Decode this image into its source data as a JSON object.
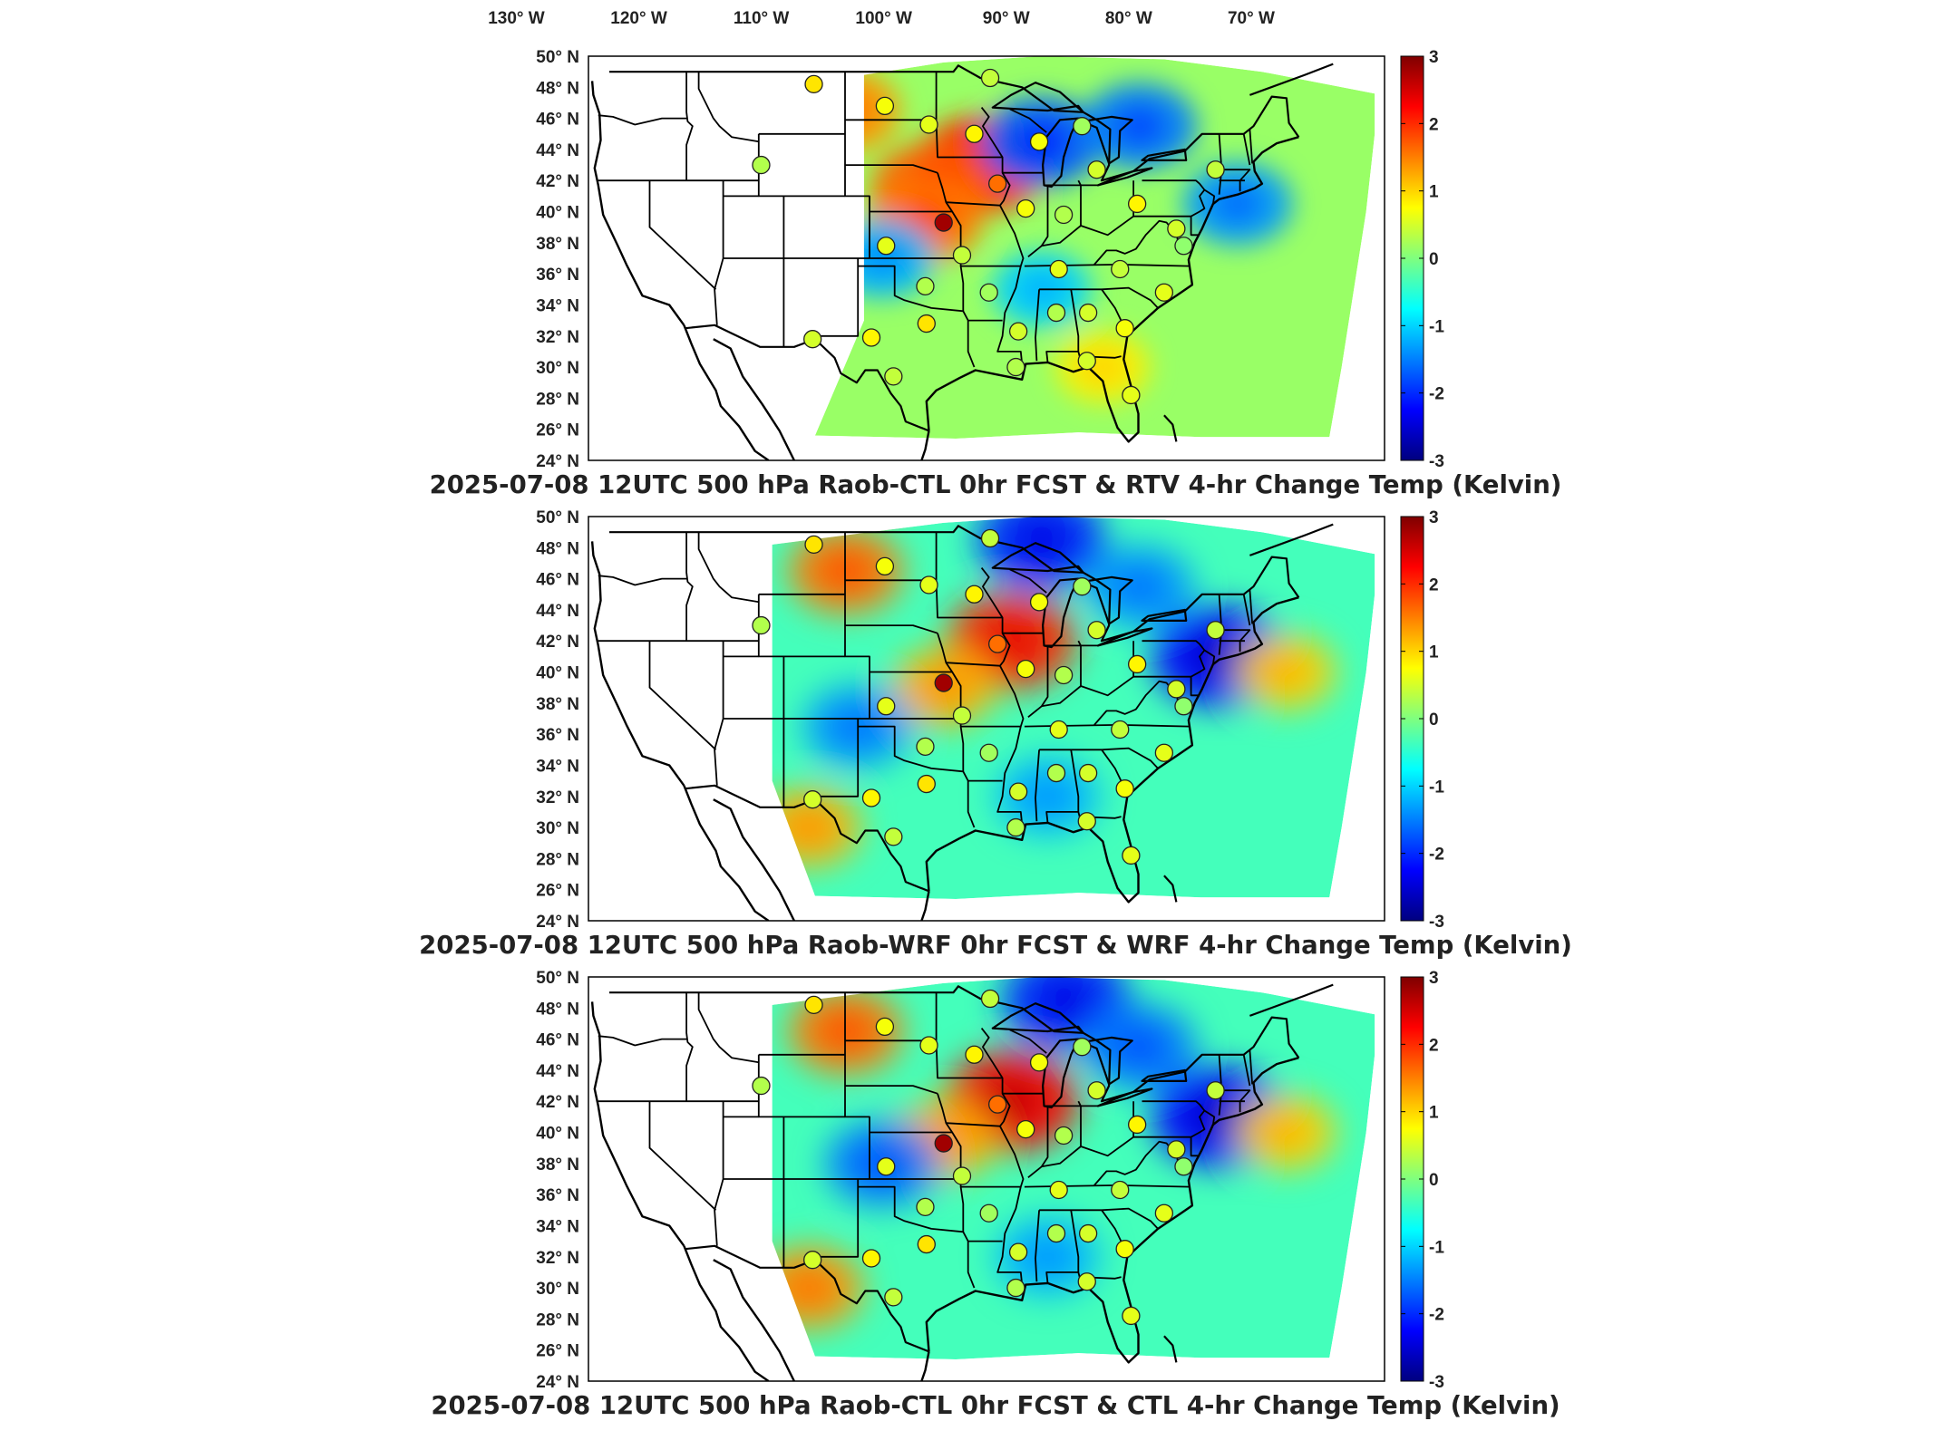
{
  "top_lon_labels": [
    "130° W",
    "120° W",
    "110° W",
    "100° W",
    "90° W",
    "80° W",
    "70° W"
  ],
  "lat_labels": [
    "50° N",
    "48° N",
    "46° N",
    "44° N",
    "42° N",
    "40° N",
    "38° N",
    "36° N",
    "34° N",
    "32° N",
    "30° N",
    "28° N",
    "26° N",
    "24° N"
  ],
  "colorbar": {
    "ticks": [
      "3",
      "2",
      "1",
      "0",
      "-1",
      "-2",
      "-3"
    ],
    "range": [
      -3,
      3
    ],
    "colormap": [
      "#00007f",
      "#0000ff",
      "#007fff",
      "#00ffff",
      "#7fff7f",
      "#ffff00",
      "#ff7f00",
      "#ff0000",
      "#7f0000"
    ]
  },
  "map_extent": {
    "lon": [
      -125,
      -60
    ],
    "lat": [
      24,
      50
    ]
  },
  "panels": [
    {
      "title": "2025-07-08 12UTC 500 hPa Raob-CTL 0hr FCST & RTV 4-hr Change Temp (Kelvin)",
      "field_type": "rtv",
      "field_left_lon": -102.5,
      "hotspots": [
        {
          "lon": -93,
          "lat": 43,
          "value": 2.4
        },
        {
          "lon": -97,
          "lat": 41.5,
          "value": 2.0
        },
        {
          "lon": -97.5,
          "lat": 39.5,
          "value": 1.8
        },
        {
          "lon": -104,
          "lat": 46.5,
          "value": 1.6
        },
        {
          "lon": -88,
          "lat": 44.5,
          "value": -2.0
        },
        {
          "lon": -80,
          "lat": 45.5,
          "value": -1.8
        },
        {
          "lon": -72,
          "lat": 40.5,
          "value": -1.6
        },
        {
          "lon": -101,
          "lat": 37,
          "value": -1.4
        },
        {
          "lon": -88,
          "lat": 35,
          "value": -1.2
        },
        {
          "lon": -83,
          "lat": 30,
          "value": 1.0
        }
      ]
    },
    {
      "title": "2025-07-08 12UTC 500 hPa Raob-WRF 0hr FCST & WRF 4-hr Change Temp (Kelvin)",
      "field_type": "wrf",
      "field_left_lon": -110,
      "hotspots": [
        {
          "lon": -90.5,
          "lat": 42,
          "value": 2.4
        },
        {
          "lon": -104,
          "lat": 46.5,
          "value": 1.8
        },
        {
          "lon": -96,
          "lat": 39,
          "value": 1.4
        },
        {
          "lon": -88,
          "lat": 48.5,
          "value": -2.4
        },
        {
          "lon": -80,
          "lat": 45.5,
          "value": -1.6
        },
        {
          "lon": -73.5,
          "lat": 41,
          "value": -2.6
        },
        {
          "lon": -103,
          "lat": 36.5,
          "value": -1.6
        },
        {
          "lon": -87.5,
          "lat": 32,
          "value": -1.4
        },
        {
          "lon": -68,
          "lat": 40,
          "value": 1.2
        },
        {
          "lon": -107,
          "lat": 30,
          "value": 1.4
        }
      ]
    },
    {
      "title": "2025-07-08 12UTC 500 hPa Raob-CTL 0hr FCST & CTL 4-hr Change Temp (Kelvin)",
      "field_type": "ctl",
      "field_left_lon": -110,
      "hotspots": [
        {
          "lon": -90.5,
          "lat": 42,
          "value": 2.6
        },
        {
          "lon": -104,
          "lat": 46.5,
          "value": 1.8
        },
        {
          "lon": -96,
          "lat": 39.5,
          "value": 1.4
        },
        {
          "lon": -86,
          "lat": 48.5,
          "value": -2.4
        },
        {
          "lon": -80,
          "lat": 45.5,
          "value": -1.8
        },
        {
          "lon": -73.5,
          "lat": 41,
          "value": -2.6
        },
        {
          "lon": -101,
          "lat": 38,
          "value": -1.8
        },
        {
          "lon": -87.5,
          "lat": 32,
          "value": -1.4
        },
        {
          "lon": -68,
          "lat": 40,
          "value": 1.2
        },
        {
          "lon": -107,
          "lat": 30,
          "value": 1.6
        }
      ]
    }
  ],
  "raob_stations": [
    {
      "lon": -106.6,
      "lat": 48.2,
      "value": 0.9
    },
    {
      "lon": -100.8,
      "lat": 46.8,
      "value": 0.7
    },
    {
      "lon": -97.2,
      "lat": 45.6,
      "value": 0.6
    },
    {
      "lon": -92.2,
      "lat": 48.6,
      "value": 0.4
    },
    {
      "lon": -93.5,
      "lat": 45.0,
      "value": 0.8
    },
    {
      "lon": -88.2,
      "lat": 44.5,
      "value": 0.7
    },
    {
      "lon": -84.7,
      "lat": 45.5,
      "value": 0.2
    },
    {
      "lon": -83.5,
      "lat": 42.7,
      "value": 0.5
    },
    {
      "lon": -91.6,
      "lat": 41.8,
      "value": 1.6
    },
    {
      "lon": -89.3,
      "lat": 40.2,
      "value": 0.7
    },
    {
      "lon": -96.0,
      "lat": 39.3,
      "value": 2.8
    },
    {
      "lon": -100.7,
      "lat": 37.8,
      "value": 0.6
    },
    {
      "lon": -94.5,
      "lat": 37.2,
      "value": 0.4
    },
    {
      "lon": -86.2,
      "lat": 39.8,
      "value": 0.3
    },
    {
      "lon": -80.2,
      "lat": 40.5,
      "value": 0.8
    },
    {
      "lon": -77.0,
      "lat": 38.9,
      "value": 0.5
    },
    {
      "lon": -76.4,
      "lat": 37.8,
      "value": 0.1
    },
    {
      "lon": -81.6,
      "lat": 36.3,
      "value": 0.4
    },
    {
      "lon": -86.6,
      "lat": 36.3,
      "value": 0.6
    },
    {
      "lon": -97.5,
      "lat": 35.2,
      "value": 0.3
    },
    {
      "lon": -92.3,
      "lat": 34.8,
      "value": 0.2
    },
    {
      "lon": -86.8,
      "lat": 33.5,
      "value": 0.3
    },
    {
      "lon": -84.2,
      "lat": 33.5,
      "value": 0.5
    },
    {
      "lon": -78.0,
      "lat": 34.8,
      "value": 0.6
    },
    {
      "lon": -81.2,
      "lat": 32.5,
      "value": 0.7
    },
    {
      "lon": -89.9,
      "lat": 32.3,
      "value": 0.5
    },
    {
      "lon": -97.4,
      "lat": 32.8,
      "value": 0.9
    },
    {
      "lon": -101.9,
      "lat": 31.9,
      "value": 0.8
    },
    {
      "lon": -106.7,
      "lat": 31.8,
      "value": 0.5
    },
    {
      "lon": -100.1,
      "lat": 29.4,
      "value": 0.4
    },
    {
      "lon": -90.1,
      "lat": 30.0,
      "value": 0.3
    },
    {
      "lon": -84.3,
      "lat": 30.4,
      "value": 0.5
    },
    {
      "lon": -80.7,
      "lat": 28.2,
      "value": 0.6
    },
    {
      "lon": -73.8,
      "lat": 42.7,
      "value": 0.4
    },
    {
      "lon": -110.9,
      "lat": 43.0,
      "value": 0.3
    }
  ]
}
